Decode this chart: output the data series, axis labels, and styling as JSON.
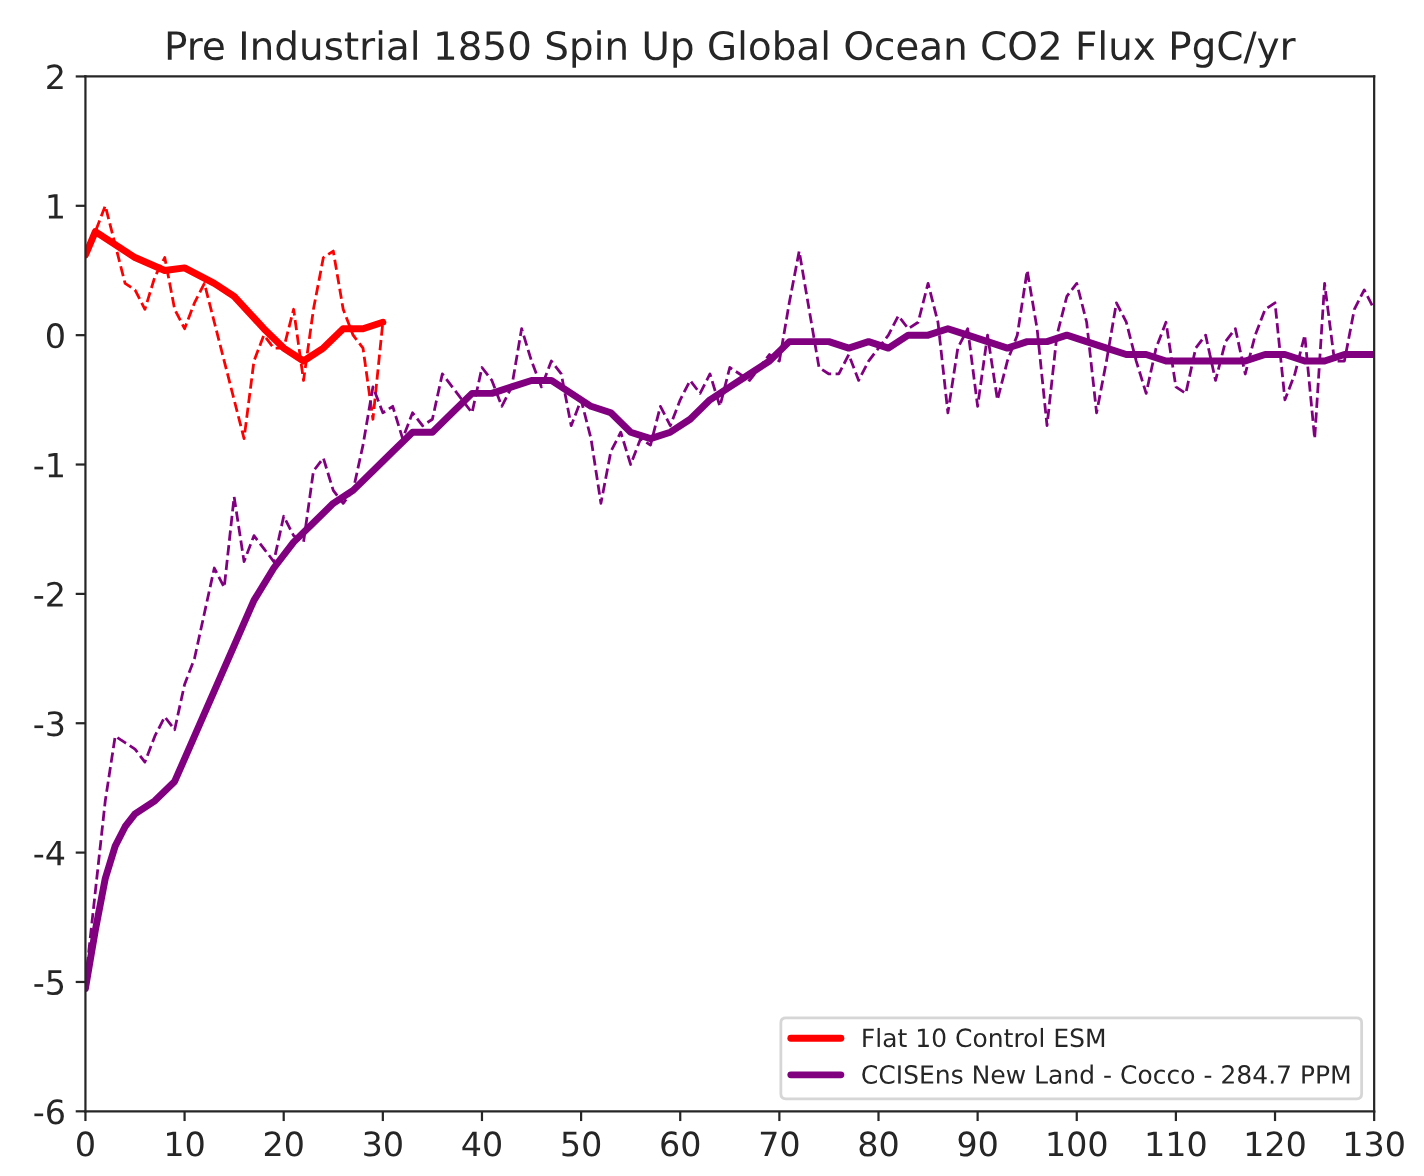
{
  "chart_data": {
    "type": "line",
    "title": "Pre Industrial 1850 Spin Up Global Ocean CO2 Flux PgC/yr",
    "xlim": [
      0,
      130
    ],
    "xticks": [
      0,
      10,
      20,
      30,
      40,
      50,
      60,
      70,
      80,
      90,
      100,
      110,
      120,
      130
    ],
    "ylim": [
      -6,
      2
    ],
    "yticks": [
      -6,
      -5,
      -4,
      -3,
      -2,
      -1,
      0,
      1,
      2
    ],
    "grid": false,
    "legend": "bottom right",
    "marker": "none",
    "series": [
      {
        "color": "#ff0000",
        "line_style": "dashed",
        "x": [
          0,
          1,
          2,
          3,
          4,
          5,
          6,
          7,
          8,
          9,
          10,
          11,
          12,
          13,
          14,
          15,
          16,
          17,
          18,
          19,
          20,
          21,
          22,
          23,
          24,
          25,
          26,
          27,
          28,
          29,
          30
        ],
        "values": [
          0.6,
          0.8,
          1.0,
          0.7,
          0.4,
          0.35,
          0.2,
          0.45,
          0.6,
          0.2,
          0.05,
          0.25,
          0.4,
          0.1,
          -0.2,
          -0.5,
          -0.8,
          -0.2,
          0.0,
          -0.1,
          -0.1,
          0.2,
          -0.35,
          0.2,
          0.6,
          0.65,
          0.2,
          0.0,
          -0.1,
          -0.65,
          0.1
        ]
      },
      {
        "color": "#800080",
        "line_style": "dashed",
        "x": [
          0,
          1,
          2,
          3,
          4,
          5,
          6,
          7,
          8,
          9,
          10,
          11,
          12,
          13,
          14,
          15,
          16,
          17,
          18,
          19,
          20,
          21,
          22,
          23,
          24,
          25,
          26,
          27,
          28,
          29,
          30,
          31,
          32,
          33,
          34,
          35,
          36,
          37,
          38,
          39,
          40,
          41,
          42,
          43,
          44,
          45,
          46,
          47,
          48,
          49,
          50,
          51,
          52,
          53,
          54,
          55,
          56,
          57,
          58,
          59,
          60,
          61,
          62,
          63,
          64,
          65,
          66,
          67,
          68,
          69,
          70,
          71,
          72,
          73,
          74,
          75,
          76,
          77,
          78,
          79,
          80,
          81,
          82,
          83,
          84,
          85,
          86,
          87,
          88,
          89,
          90,
          91,
          92,
          93,
          94,
          95,
          96,
          97,
          98,
          99,
          100,
          101,
          102,
          103,
          104,
          105,
          106,
          107,
          108,
          109,
          110,
          111,
          112,
          113,
          114,
          115,
          116,
          117,
          118,
          119,
          120,
          121,
          122,
          123,
          124,
          125,
          126,
          127,
          128,
          129,
          130
        ],
        "values": [
          -5.0,
          -4.3,
          -3.6,
          -3.1,
          -3.15,
          -3.2,
          -3.3,
          -3.1,
          -2.95,
          -3.05,
          -2.7,
          -2.5,
          -2.15,
          -1.8,
          -1.95,
          -1.25,
          -1.75,
          -1.55,
          -1.65,
          -1.75,
          -1.4,
          -1.55,
          -1.6,
          -1.05,
          -0.95,
          -1.2,
          -1.3,
          -1.2,
          -0.85,
          -0.4,
          -0.6,
          -0.55,
          -0.8,
          -0.6,
          -0.7,
          -0.65,
          -0.3,
          -0.4,
          -0.5,
          -0.6,
          -0.25,
          -0.35,
          -0.55,
          -0.4,
          0.05,
          -0.2,
          -0.4,
          -0.2,
          -0.3,
          -0.7,
          -0.5,
          -0.8,
          -1.3,
          -0.9,
          -0.75,
          -1.0,
          -0.8,
          -0.85,
          -0.55,
          -0.7,
          -0.5,
          -0.35,
          -0.45,
          -0.3,
          -0.55,
          -0.25,
          -0.3,
          -0.35,
          -0.25,
          -0.15,
          -0.2,
          0.25,
          0.65,
          0.2,
          -0.25,
          -0.3,
          -0.3,
          -0.15,
          -0.35,
          -0.2,
          -0.1,
          0.0,
          0.15,
          0.05,
          0.1,
          0.4,
          0.1,
          -0.6,
          -0.1,
          0.05,
          -0.55,
          0.0,
          -0.5,
          -0.2,
          0.0,
          0.5,
          0.05,
          -0.7,
          0.0,
          0.3,
          0.4,
          0.1,
          -0.6,
          -0.2,
          0.25,
          0.1,
          -0.2,
          -0.45,
          -0.1,
          0.1,
          -0.4,
          -0.45,
          -0.1,
          0.0,
          -0.35,
          -0.05,
          0.05,
          -0.3,
          0.0,
          0.2,
          0.25,
          -0.5,
          -0.3,
          0.0,
          -0.8,
          0.4,
          -0.2,
          -0.2,
          0.2,
          0.35,
          0.2
        ]
      },
      {
        "name": "Flat 10 Control ESM",
        "color": "#ff0000",
        "line_style": "solid",
        "x": [
          0,
          1,
          2,
          5,
          8,
          10,
          13,
          15,
          18,
          20,
          22,
          24,
          26,
          28,
          30
        ],
        "values": [
          0.62,
          0.8,
          0.75,
          0.6,
          0.5,
          0.52,
          0.4,
          0.3,
          0.05,
          -0.1,
          -0.2,
          -0.1,
          0.05,
          0.05,
          0.1
        ]
      },
      {
        "name": "CCISEns New Land - Cocco - 284.7 PPM",
        "color": "#800080",
        "line_style": "solid",
        "x": [
          0,
          1,
          2,
          3,
          4,
          5,
          7,
          9,
          11,
          13,
          15,
          17,
          19,
          21,
          23,
          25,
          27,
          29,
          31,
          33,
          35,
          37,
          39,
          41,
          43,
          45,
          47,
          49,
          51,
          53,
          55,
          57,
          59,
          61,
          63,
          65,
          67,
          69,
          71,
          73,
          75,
          77,
          79,
          81,
          83,
          85,
          87,
          89,
          91,
          93,
          95,
          97,
          99,
          101,
          103,
          105,
          107,
          109,
          111,
          113,
          115,
          117,
          119,
          121,
          123,
          125,
          127,
          130
        ],
        "values": [
          -5.05,
          -4.6,
          -4.2,
          -3.95,
          -3.8,
          -3.7,
          -3.6,
          -3.45,
          -3.1,
          -2.75,
          -2.4,
          -2.05,
          -1.8,
          -1.6,
          -1.45,
          -1.3,
          -1.2,
          -1.05,
          -0.9,
          -0.75,
          -0.75,
          -0.6,
          -0.45,
          -0.45,
          -0.4,
          -0.35,
          -0.35,
          -0.45,
          -0.55,
          -0.6,
          -0.75,
          -0.8,
          -0.75,
          -0.65,
          -0.5,
          -0.4,
          -0.3,
          -0.2,
          -0.05,
          -0.05,
          -0.05,
          -0.1,
          -0.05,
          -0.1,
          0.0,
          0.0,
          0.05,
          0.0,
          -0.05,
          -0.1,
          -0.05,
          -0.05,
          0.0,
          -0.05,
          -0.1,
          -0.15,
          -0.15,
          -0.2,
          -0.2,
          -0.2,
          -0.2,
          -0.2,
          -0.15,
          -0.15,
          -0.2,
          -0.2,
          -0.15,
          -0.15
        ]
      }
    ]
  }
}
